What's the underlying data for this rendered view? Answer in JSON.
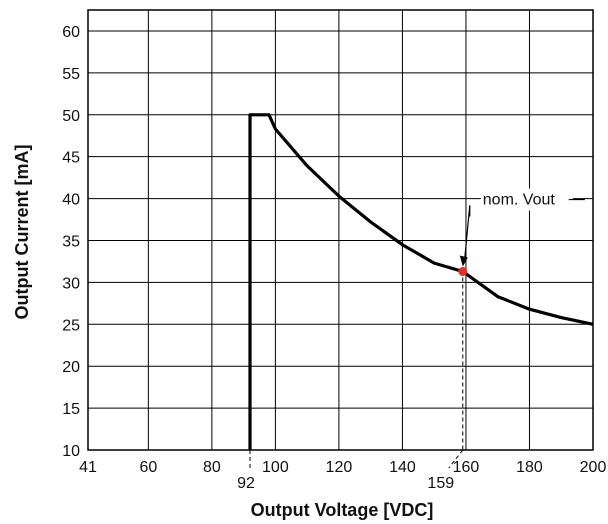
{
  "chart_data": {
    "type": "line",
    "title": "",
    "xlabel": "Output Voltage [VDC]",
    "ylabel": "Output Current [mA]",
    "xlim": [
      41,
      200
    ],
    "ylim": [
      10,
      62.5
    ],
    "x_ticks": [
      41,
      60,
      80,
      100,
      120,
      140,
      160,
      180,
      200
    ],
    "y_ticks": [
      10,
      15,
      20,
      25,
      30,
      35,
      40,
      45,
      50,
      55,
      60
    ],
    "grid": true,
    "series": [
      {
        "color": "#000000",
        "points": [
          [
            92,
            10
          ],
          [
            92,
            50
          ],
          [
            98,
            50
          ],
          [
            100,
            48.3
          ],
          [
            110,
            43.9
          ],
          [
            120,
            40.3
          ],
          [
            130,
            37.2
          ],
          [
            140,
            34.5
          ],
          [
            150,
            32.3
          ],
          [
            159,
            31.3
          ],
          [
            170,
            28.3
          ],
          [
            180,
            26.8
          ],
          [
            190,
            25.8
          ],
          [
            200,
            25.0
          ]
        ]
      }
    ],
    "annotations": [
      {
        "id": "nom-vout",
        "text": "nom. Vout",
        "x": 159,
        "y": 31.3,
        "color": "#e0312b"
      }
    ],
    "marked_values": [
      {
        "text": "92",
        "x": 92
      },
      {
        "text": "159",
        "x": 159
      }
    ]
  }
}
